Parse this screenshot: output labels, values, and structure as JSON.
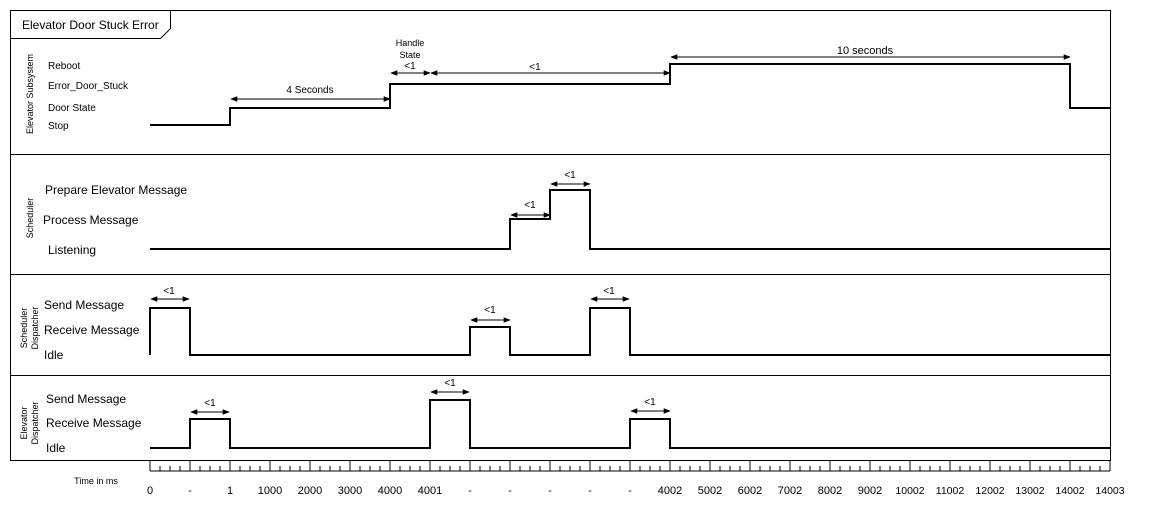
{
  "title": "Elevator Door Stuck Error",
  "lanes": [
    {
      "name": "Elevator Subsystem",
      "states": [
        "Reboot",
        "Error_Door_Stuck",
        "Door State",
        "Stop"
      ],
      "annotations": [
        {
          "text": "4 Seconds",
          "from": 2,
          "to": 6
        },
        {
          "text": "<1",
          "from": 6,
          "to": 7,
          "caption": [
            "Handle",
            "State"
          ]
        },
        {
          "text": "<1",
          "from": 7,
          "to": 13
        },
        {
          "text": "10 seconds",
          "from": 13,
          "to": 23
        }
      ]
    },
    {
      "name": "Scheduler",
      "states": [
        "Prepare Elevator Message",
        "Process Message",
        "Listening"
      ],
      "annotations": [
        {
          "text": "<1",
          "from": 9,
          "to": 10
        },
        {
          "text": "<1",
          "from": 10,
          "to": 11
        }
      ]
    },
    {
      "name": "Scheduler Dispatcher",
      "states": [
        "Send Message",
        "Receive Message",
        "Idle"
      ],
      "annotations": [
        {
          "text": "<1",
          "from": 0,
          "to": 1
        },
        {
          "text": "<1",
          "from": 8,
          "to": 9
        },
        {
          "text": "<1",
          "from": 11,
          "to": 12
        }
      ]
    },
    {
      "name": "Elevator Dispatcher",
      "states": [
        "Send Message",
        "Receive Message",
        "Idle"
      ],
      "annotations": [
        {
          "text": "<1",
          "from": 1,
          "to": 2
        },
        {
          "text": "<1",
          "from": 7,
          "to": 8
        },
        {
          "text": "<1",
          "from": 12,
          "to": 13
        }
      ]
    }
  ],
  "time_axis": {
    "label": "Time in ms",
    "ticks": [
      "0",
      "-",
      "1",
      "1000",
      "2000",
      "3000",
      "4000",
      "4001",
      "-",
      "-",
      "-",
      "-",
      "-",
      "4002",
      "5002",
      "6002",
      "7002",
      "8002",
      "9002",
      "10002",
      "11002",
      "12002",
      "13002",
      "14002",
      "14003"
    ]
  },
  "waveforms": [
    {
      "lane": "Elevator Subsystem",
      "points": [
        [
          0,
          "Stop"
        ],
        [
          2,
          "Door State"
        ],
        [
          6,
          "Error_Door_Stuck"
        ],
        [
          13,
          "Reboot"
        ],
        [
          23,
          "Door State"
        ],
        [
          24,
          "Door State"
        ]
      ]
    },
    {
      "lane": "Scheduler",
      "points": [
        [
          0,
          "Listening"
        ],
        [
          9,
          "Process Message"
        ],
        [
          10,
          "Prepare Elevator Message"
        ],
        [
          11,
          "Listening"
        ],
        [
          24,
          "Listening"
        ]
      ]
    },
    {
      "lane": "Scheduler Dispatcher",
      "points": [
        [
          0,
          "Send Message"
        ],
        [
          1,
          "Idle"
        ],
        [
          8,
          "Receive Message"
        ],
        [
          9,
          "Idle"
        ],
        [
          11,
          "Send Message"
        ],
        [
          12,
          "Idle"
        ],
        [
          24,
          "Idle"
        ]
      ]
    },
    {
      "lane": "Elevator Dispatcher",
      "points": [
        [
          0,
          "Idle"
        ],
        [
          1,
          "Receive Message"
        ],
        [
          2,
          "Idle"
        ],
        [
          7,
          "Send Message"
        ],
        [
          8,
          "Idle"
        ],
        [
          12,
          "Receive Message"
        ],
        [
          13,
          "Idle"
        ],
        [
          24,
          "Idle"
        ]
      ]
    }
  ]
}
